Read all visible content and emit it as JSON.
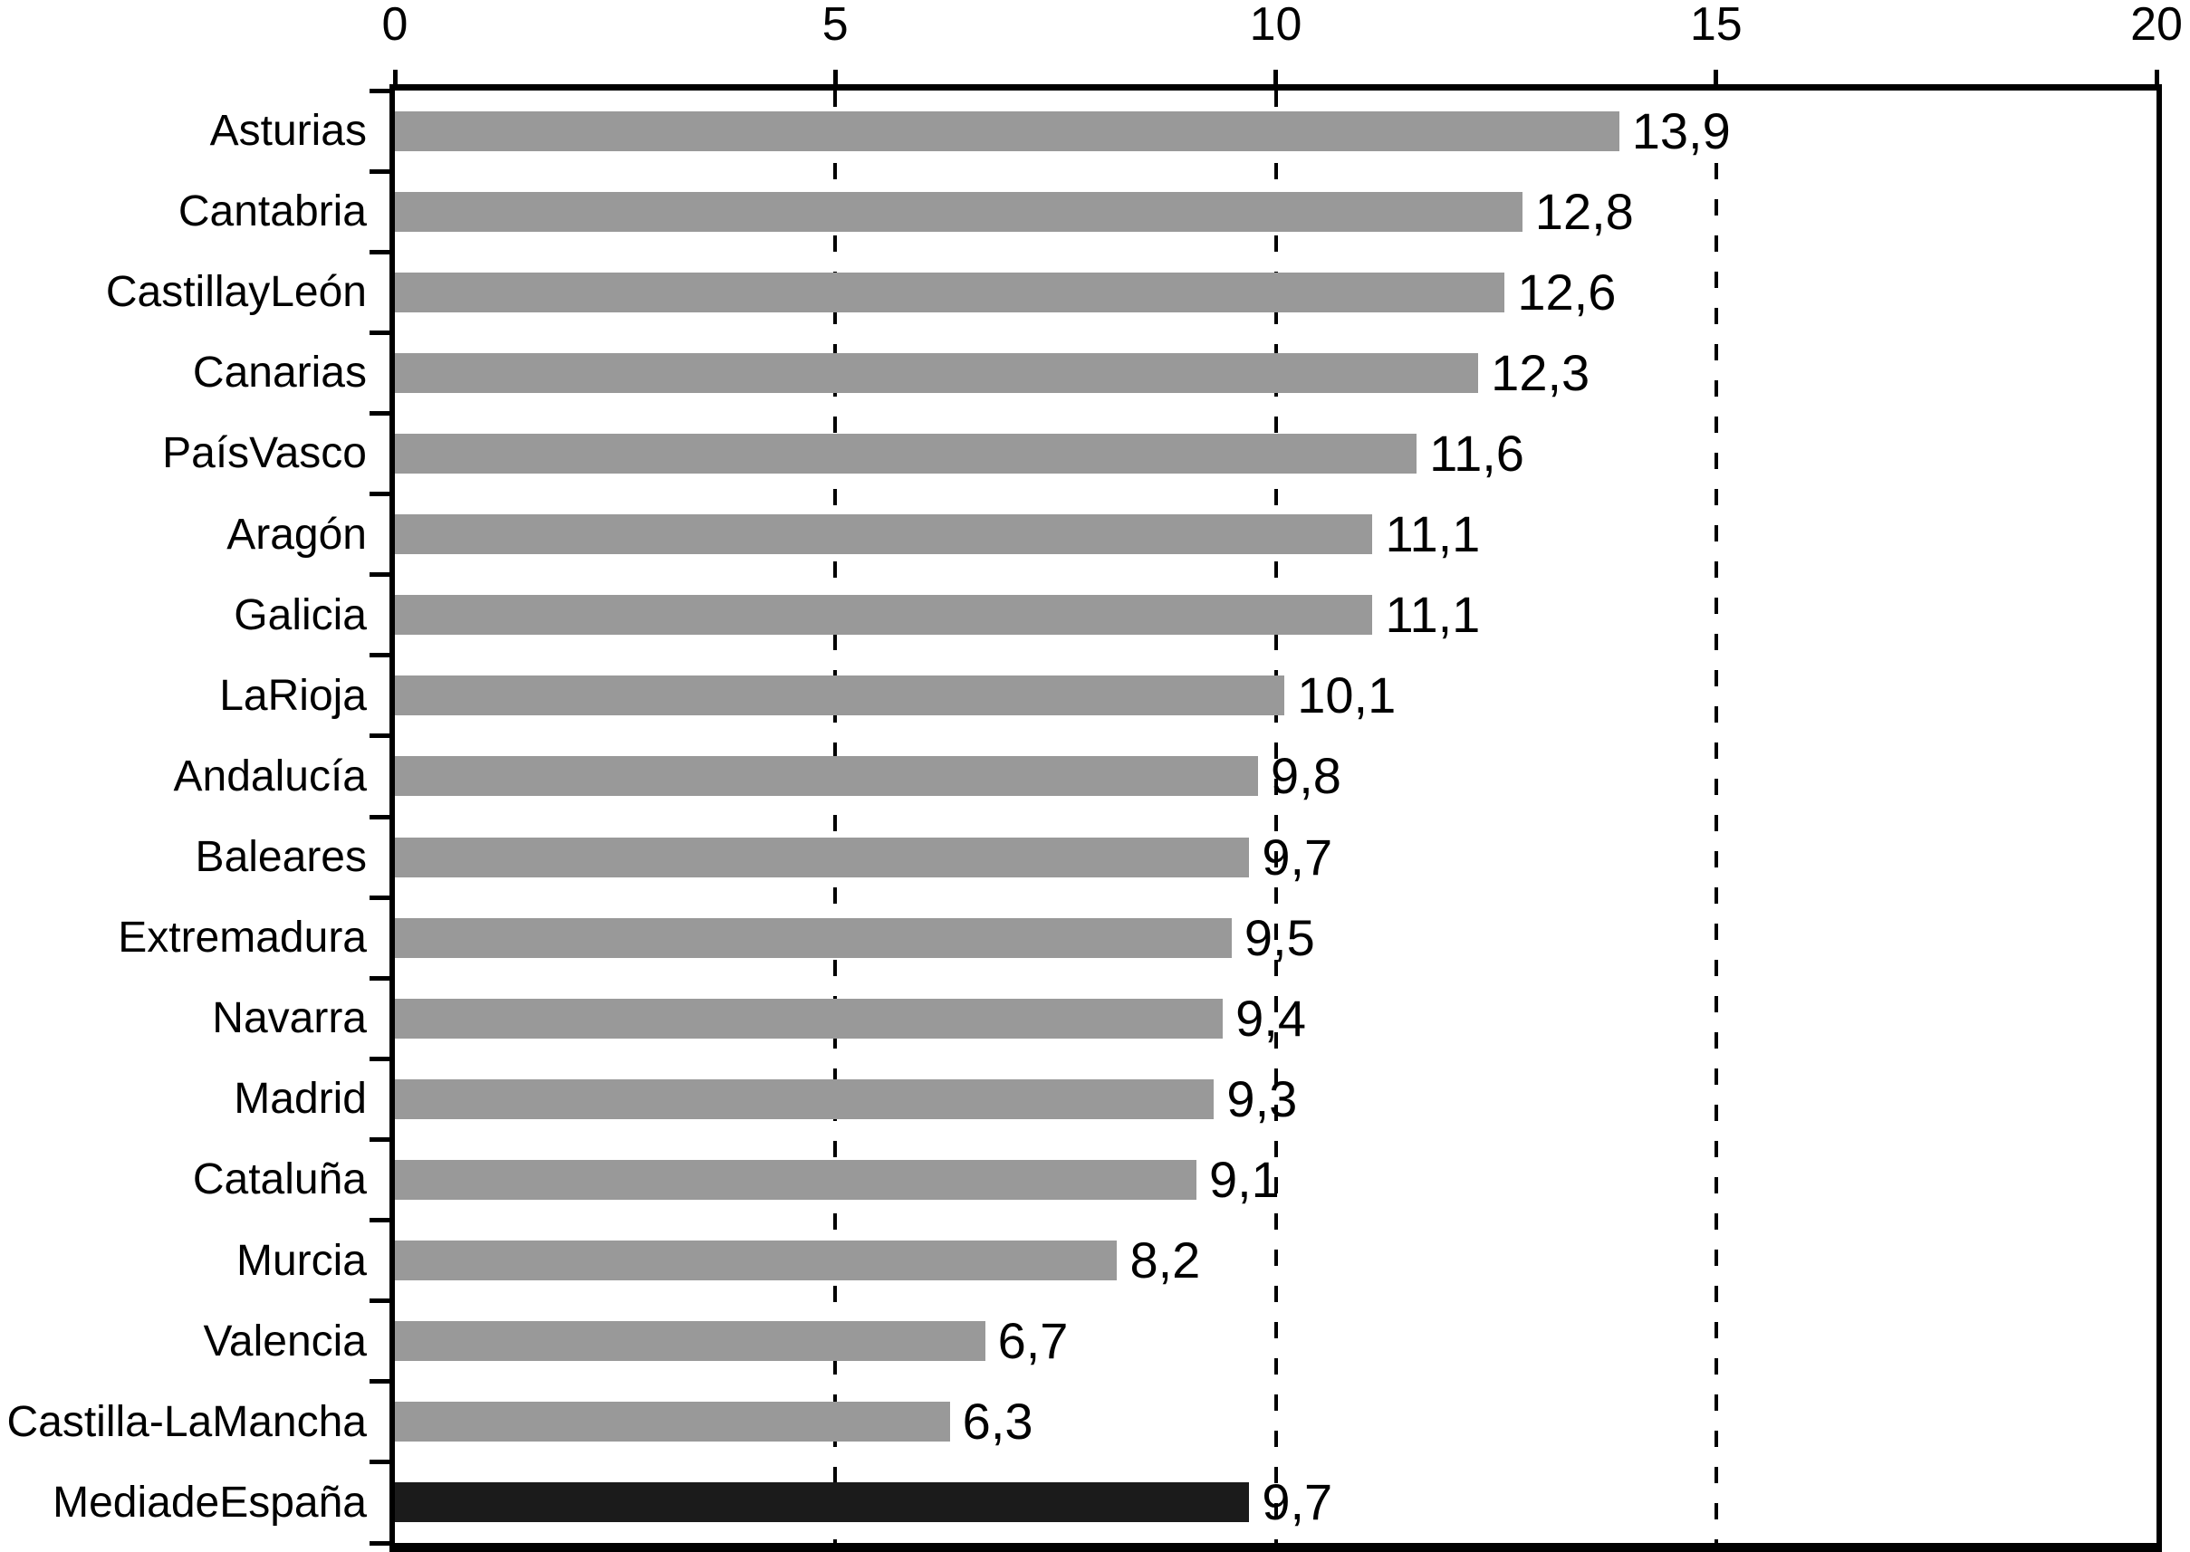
{
  "chart_data": {
    "type": "bar",
    "orientation": "horizontal",
    "title": "",
    "xlabel": "",
    "ylabel": "",
    "xlim": [
      0,
      20
    ],
    "x_ticks": [
      0,
      5,
      10,
      15,
      20
    ],
    "x_tick_labels": [
      "0",
      "5",
      "10",
      "15",
      "20"
    ],
    "gridlines_at": [
      5,
      10,
      15
    ],
    "grid_style": "dashed",
    "legend": null,
    "categories": [
      "Asturias",
      "Cantabria",
      "CastillayLeón",
      "Canarias",
      "PaísVasco",
      "Aragón",
      "Galicia",
      "LaRioja",
      "Andalucía",
      "Baleares",
      "Extremadura",
      "Navarra",
      "Madrid",
      "Cataluña",
      "Murcia",
      "Valencia",
      "Castilla-LaMancha",
      "MediadeEspaña"
    ],
    "values": [
      13.9,
      12.8,
      12.6,
      12.3,
      11.6,
      11.1,
      11.1,
      10.1,
      9.8,
      9.7,
      9.5,
      9.4,
      9.3,
      9.1,
      8.2,
      6.7,
      6.3,
      9.7
    ],
    "value_labels": [
      "13,9",
      "12,8",
      "12,6",
      "12,3",
      "11,6",
      "11,1",
      "11,1",
      "10,1",
      "9,8",
      "9,7",
      "9,5",
      "9,4",
      "9,3",
      "9,1",
      "8,2",
      "6,7",
      "6,3",
      "9,7"
    ],
    "colors": {
      "bar": "#999999",
      "highlight_bar": "#1b1b1b",
      "axis": "#000000",
      "text": "#000000"
    },
    "highlight_index": 17
  }
}
